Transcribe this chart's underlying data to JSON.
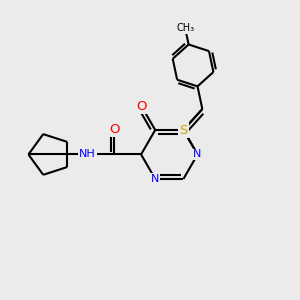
{
  "background_color": "#ebebeb",
  "bond_color": "#000000",
  "bond_lw": 1.5,
  "atom_colors": {
    "N": "#0000ff",
    "S": "#ccaa00",
    "O": "#ff0000",
    "C": "#000000",
    "H": "#008888"
  },
  "font_size": 8.0
}
